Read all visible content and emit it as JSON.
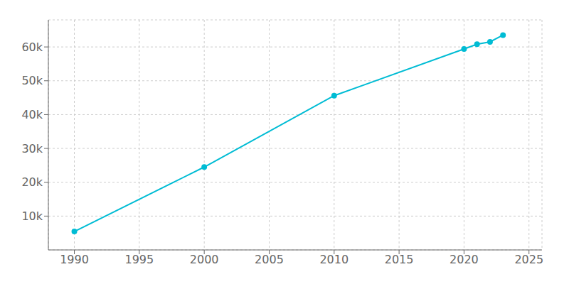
{
  "chart_data": {
    "type": "line",
    "x": [
      1990,
      2000,
      2010,
      2020,
      2021,
      2022,
      2023
    ],
    "values": [
      5450,
      24500,
      45600,
      59400,
      60800,
      61500,
      63500
    ],
    "color": "#00bcd4",
    "marker": "circle",
    "xlim": [
      1988,
      2026
    ],
    "ylim": [
      0,
      68000
    ],
    "xticks": [
      1990,
      1995,
      2000,
      2005,
      2010,
      2015,
      2020,
      2025
    ],
    "yticks": [
      {
        "value": 10000,
        "label": "10k"
      },
      {
        "value": 20000,
        "label": "20k"
      },
      {
        "value": 30000,
        "label": "30k"
      },
      {
        "value": 40000,
        "label": "40k"
      },
      {
        "value": 50000,
        "label": "50k"
      },
      {
        "value": 60000,
        "label": "60k"
      }
    ],
    "grid": true
  }
}
